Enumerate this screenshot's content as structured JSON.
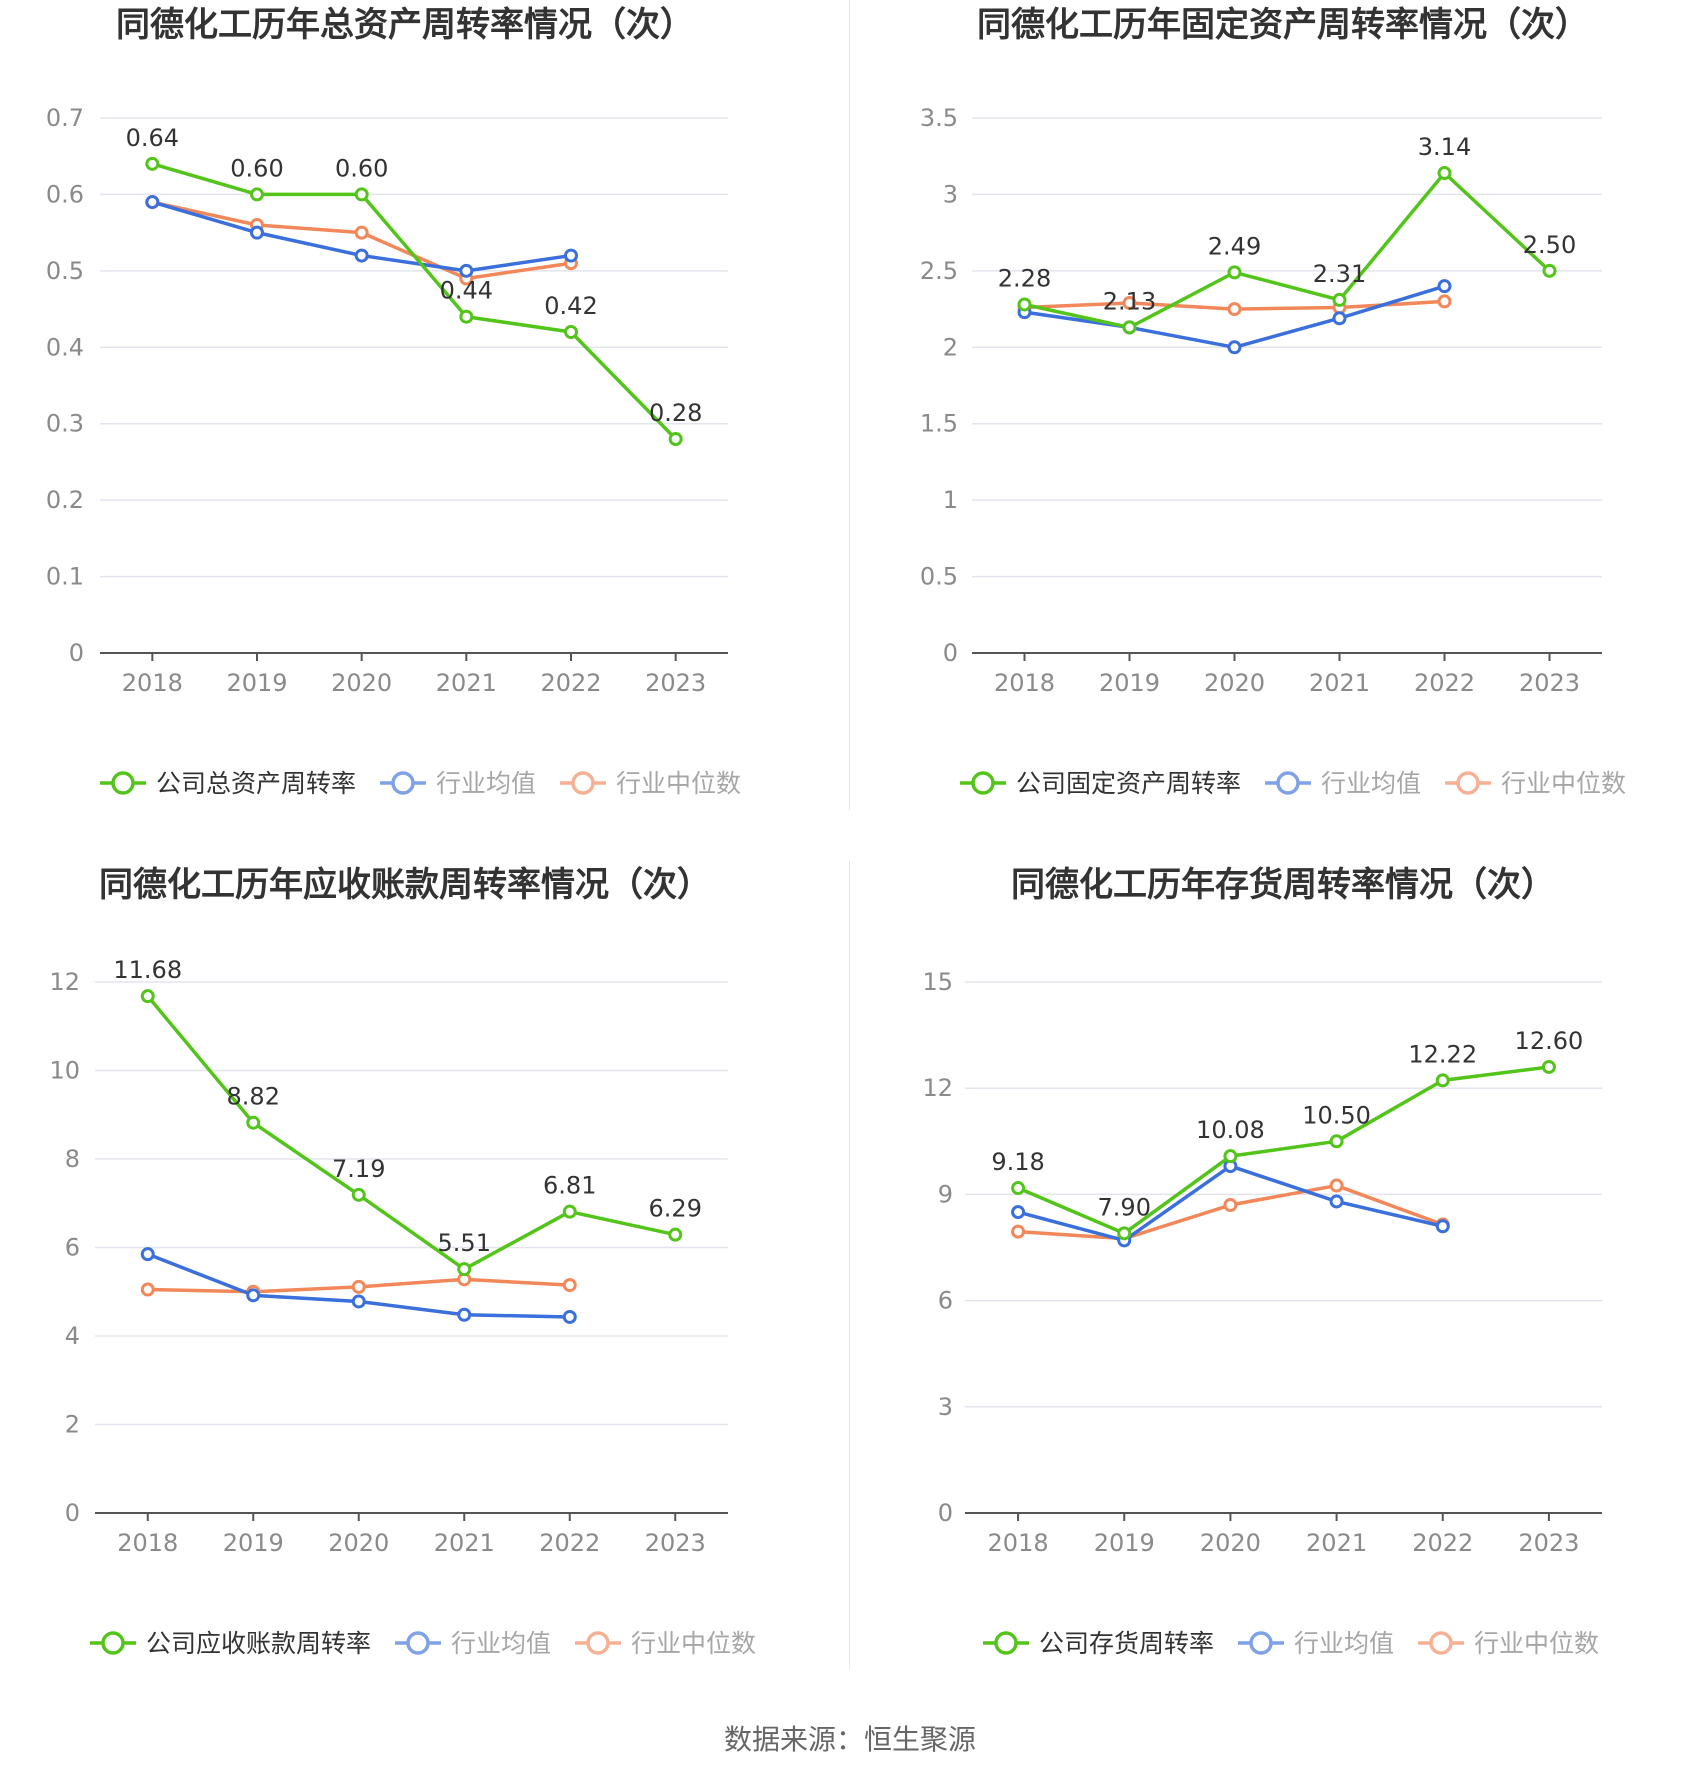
{
  "source": "数据来源：恒生聚源",
  "colors": {
    "company": "#52c41a",
    "mean": "#3a6fdc",
    "median": "#f2875a",
    "grid": "#e3e5ee",
    "axis": "#555555"
  },
  "chart_data": [
    {
      "type": "line",
      "title": "同德化工历年总资产周转率情况（次）",
      "categories": [
        "2018",
        "2019",
        "2020",
        "2021",
        "2022",
        "2023"
      ],
      "ylim": [
        0,
        0.7
      ],
      "yticks": [
        "0",
        "0.1",
        "0.2",
        "0.3",
        "0.4",
        "0.5",
        "0.6",
        "0.7"
      ],
      "legend_position": "bottom",
      "series": [
        {
          "name": "公司总资产周转率",
          "key": "company",
          "values": [
            0.64,
            0.6,
            0.6,
            0.44,
            0.42,
            0.28
          ],
          "labels": [
            "0.64",
            "0.60",
            "0.60",
            "0.44",
            "0.42",
            "0.28"
          ]
        },
        {
          "name": "行业均值",
          "key": "mean",
          "values": [
            0.59,
            0.55,
            0.52,
            0.5,
            0.52,
            null
          ]
        },
        {
          "name": "行业中位数",
          "key": "median",
          "values": [
            0.59,
            0.56,
            0.55,
            0.49,
            0.51,
            null
          ]
        }
      ]
    },
    {
      "type": "line",
      "title": "同德化工历年固定资产周转率情况（次）",
      "categories": [
        "2018",
        "2019",
        "2020",
        "2021",
        "2022",
        "2023"
      ],
      "ylim": [
        0,
        3.5
      ],
      "yticks": [
        "0",
        "0.5",
        "1",
        "1.5",
        "2",
        "2.5",
        "3",
        "3.5"
      ],
      "legend_position": "bottom",
      "series": [
        {
          "name": "公司固定资产周转率",
          "key": "company",
          "values": [
            2.28,
            2.13,
            2.49,
            2.31,
            3.14,
            2.5
          ],
          "labels": [
            "2.28",
            "2.13",
            "2.49",
            "2.31",
            "3.14",
            "2.50"
          ]
        },
        {
          "name": "行业均值",
          "key": "mean",
          "values": [
            2.23,
            2.13,
            2.0,
            2.19,
            2.4,
            null
          ]
        },
        {
          "name": "行业中位数",
          "key": "median",
          "values": [
            2.26,
            2.29,
            2.25,
            2.26,
            2.3,
            null
          ]
        }
      ]
    },
    {
      "type": "line",
      "title": "同德化工历年应收账款周转率情况（次）",
      "categories": [
        "2018",
        "2019",
        "2020",
        "2021",
        "2022",
        "2023"
      ],
      "ylim": [
        0,
        12
      ],
      "yticks": [
        "0",
        "2",
        "4",
        "6",
        "8",
        "10",
        "12"
      ],
      "legend_position": "bottom",
      "series": [
        {
          "name": "公司应收账款周转率",
          "key": "company",
          "values": [
            11.68,
            8.82,
            7.19,
            5.51,
            6.81,
            6.29
          ],
          "labels": [
            "11.68",
            "8.82",
            "7.19",
            "5.51",
            "6.81",
            "6.29"
          ]
        },
        {
          "name": "行业均值",
          "key": "mean",
          "values": [
            5.85,
            4.92,
            4.78,
            4.48,
            4.43,
            null
          ]
        },
        {
          "name": "行业中位数",
          "key": "median",
          "values": [
            5.05,
            5.0,
            5.11,
            5.28,
            5.15,
            null
          ]
        }
      ]
    },
    {
      "type": "line",
      "title": "同德化工历年存货周转率情况（次）",
      "categories": [
        "2018",
        "2019",
        "2020",
        "2021",
        "2022",
        "2023"
      ],
      "ylim": [
        0,
        15
      ],
      "yticks": [
        "0",
        "3",
        "6",
        "9",
        "12",
        "15"
      ],
      "legend_position": "bottom",
      "series": [
        {
          "name": "公司存货周转率",
          "key": "company",
          "values": [
            9.18,
            7.9,
            10.08,
            10.5,
            12.22,
            12.6
          ],
          "labels": [
            "9.18",
            "7.90",
            "10.08",
            "10.50",
            "12.22",
            "12.60"
          ]
        },
        {
          "name": "行业均值",
          "key": "mean",
          "values": [
            8.5,
            7.7,
            9.8,
            8.8,
            8.1,
            null
          ]
        },
        {
          "name": "行业中位数",
          "key": "median",
          "values": [
            7.95,
            7.75,
            8.7,
            9.25,
            8.15,
            null
          ]
        }
      ]
    }
  ]
}
